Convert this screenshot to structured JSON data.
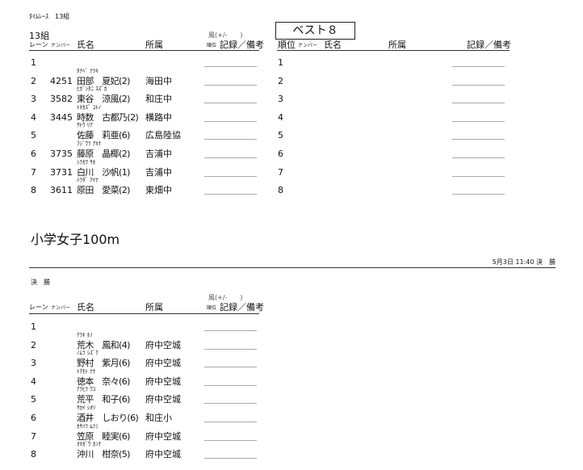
{
  "header": {
    "race_type": "ﾀｲﾑﾚｰｽ　13組",
    "heat_label": "13組"
  },
  "columns": {
    "lane": "レーン",
    "number": "ナンバー",
    "name": "氏名",
    "team": "所属",
    "wind": "風(+/-　　)",
    "rank_small": "順位",
    "record": "記録／備考",
    "rank": "順位"
  },
  "best8": {
    "label": "ベスト８",
    "ranks": [
      "1",
      "2",
      "3",
      "4",
      "5",
      "6",
      "7",
      "8"
    ]
  },
  "heat13": [
    {
      "lane": "1",
      "number": "",
      "kana": "",
      "name": "",
      "team": ""
    },
    {
      "lane": "2",
      "number": "4251",
      "kana": "ﾀﾅﾍﾞ ﾅﾂｷ",
      "name": "田部　夏妃(2)",
      "team": "海田中"
    },
    {
      "lane": "3",
      "number": "3582",
      "kana": "ﾋｶﾞｼﾀﾆ ｽｽﾞｶ",
      "name": "東谷　涼風(2)",
      "team": "和庄中"
    },
    {
      "lane": "4",
      "number": "3445",
      "kana": "ﾄｷｶｽﾞ ｺﾄﾉ",
      "name": "時数　古都乃(2)",
      "team": "横路中"
    },
    {
      "lane": "5",
      "number": "",
      "kana": "ｻﾄｳ ﾘｱ",
      "name": "佐藤　莉亜(6)",
      "team": "広島陸協"
    },
    {
      "lane": "6",
      "number": "3735",
      "kana": "ﾌｼﾞﾜﾗ ｱｷﾅ",
      "name": "藤原　晶椰(2)",
      "team": "吉浦中"
    },
    {
      "lane": "7",
      "number": "3731",
      "kana": "ｼﾗｶﾜ ｻﾎ",
      "name": "白川　沙帆(1)",
      "team": "吉浦中"
    },
    {
      "lane": "8",
      "number": "3611",
      "kana": "ﾊﾗﾀﾞ ｱｲﾅ",
      "name": "原田　愛菜(2)",
      "team": "東畑中"
    }
  ],
  "event": {
    "title": "小学女子100m",
    "datetime": "5月3日 11:40 決　勝",
    "round": "決　勝"
  },
  "final": [
    {
      "lane": "1",
      "number": "",
      "kana": "",
      "name": "",
      "team": ""
    },
    {
      "lane": "2",
      "number": "",
      "kana": "ｱﾗｷ ﾎﾉ",
      "name": "荒木　鳳和(4)",
      "team": "府中空城"
    },
    {
      "lane": "3",
      "number": "",
      "kana": "ﾉﾑﾗ ｼｽﾞｸ",
      "name": "野村　紫月(6)",
      "team": "府中空城"
    },
    {
      "lane": "4",
      "number": "",
      "kana": "ﾄｸﾓﾄ ﾅﾅ",
      "name": "徳本　奈々(6)",
      "team": "府中空城"
    },
    {
      "lane": "5",
      "number": "",
      "kana": "ｱﾗﾋﾗ ﾜｺ",
      "name": "荒平　和子(6)",
      "team": "府中空城"
    },
    {
      "lane": "6",
      "number": "",
      "kana": "ｻｶｲ ｼｵﾘ",
      "name": "酒井　しおり(6)",
      "team": "和庄小"
    },
    {
      "lane": "7",
      "number": "",
      "kana": "ｶｻﾊﾗ ﾑﾂﾐ",
      "name": "笠原　睦実(6)",
      "team": "府中空城"
    },
    {
      "lane": "8",
      "number": "",
      "kana": "ｵｷｶﾞﾜ ｶﾝﾅ",
      "name": "沖川　柑奈(5)",
      "team": "府中空城"
    }
  ]
}
